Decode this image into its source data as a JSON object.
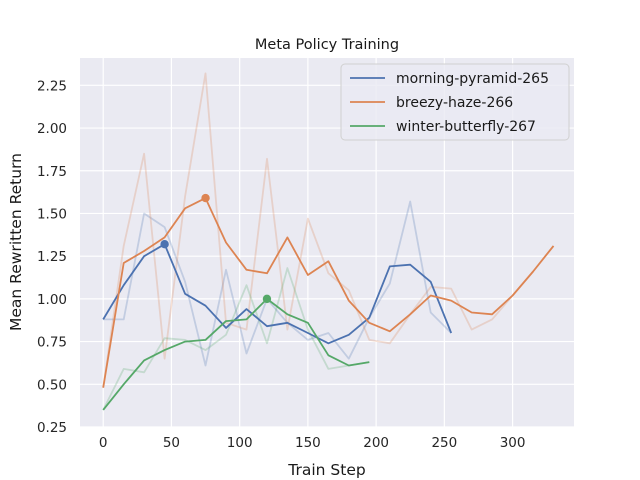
{
  "chart_data": {
    "type": "line",
    "title": "Meta Policy Training",
    "xlabel": "Train Step",
    "ylabel": "Mean Rewritten Return",
    "xlim": [
      -17,
      345
    ],
    "ylim": [
      0.25,
      2.41
    ],
    "xticks": [
      0,
      50,
      100,
      150,
      200,
      250,
      300
    ],
    "yticks": [
      0.25,
      0.5,
      0.75,
      1.0,
      1.25,
      1.5,
      1.75,
      2.0,
      2.25
    ],
    "xtick_labels": [
      "0",
      "50",
      "100",
      "150",
      "200",
      "250",
      "300"
    ],
    "ytick_labels": [
      "0.25",
      "0.50",
      "0.75",
      "1.00",
      "1.25",
      "1.50",
      "1.75",
      "2.00",
      "2.25"
    ],
    "grid": true,
    "legend_position": "top-right",
    "series": [
      {
        "name": "morning-pyramid-265",
        "color": "#4c72b0",
        "raw_x": [
          0,
          15,
          30,
          45,
          60,
          75,
          90,
          105,
          120,
          135,
          150,
          165,
          180,
          195,
          210,
          225,
          240,
          255
        ],
        "raw_y": [
          0.88,
          0.88,
          1.5,
          1.42,
          1.1,
          0.61,
          1.17,
          0.68,
          1.0,
          0.86,
          0.76,
          0.8,
          0.65,
          0.89,
          1.09,
          1.57,
          0.92,
          0.8
        ],
        "smooth_x": [
          0,
          15,
          30,
          45,
          60,
          75,
          90,
          105,
          120,
          135,
          150,
          165,
          180,
          195,
          210,
          225,
          240,
          255
        ],
        "smooth_y": [
          0.88,
          1.08,
          1.25,
          1.32,
          1.03,
          0.96,
          0.83,
          0.94,
          0.84,
          0.86,
          0.8,
          0.74,
          0.79,
          0.89,
          1.19,
          1.2,
          1.1,
          0.8
        ],
        "marker": {
          "x": 45,
          "y": 1.32
        }
      },
      {
        "name": "breezy-haze-266",
        "color": "#dd8452",
        "raw_x": [
          0,
          15,
          30,
          45,
          60,
          75,
          90,
          105,
          120,
          135,
          150,
          165,
          180,
          195,
          210,
          225,
          240,
          255,
          270,
          285,
          300,
          315,
          330
        ],
        "raw_y": [
          0.48,
          1.31,
          1.85,
          0.65,
          1.6,
          2.32,
          0.86,
          0.82,
          1.82,
          0.82,
          1.47,
          1.15,
          1.05,
          0.76,
          0.74,
          0.91,
          1.07,
          1.06,
          0.82,
          0.88,
          1.02,
          1.16,
          1.31
        ],
        "smooth_x": [
          0,
          15,
          30,
          45,
          60,
          75,
          90,
          105,
          120,
          135,
          150,
          165,
          180,
          195,
          210,
          225,
          240,
          255,
          270,
          285,
          300,
          315,
          330
        ],
        "smooth_y": [
          0.48,
          1.21,
          1.28,
          1.36,
          1.53,
          1.59,
          1.33,
          1.17,
          1.15,
          1.36,
          1.14,
          1.22,
          0.99,
          0.86,
          0.81,
          0.91,
          1.02,
          0.99,
          0.92,
          0.91,
          1.02,
          1.16,
          1.31
        ],
        "marker": {
          "x": 75,
          "y": 1.59
        }
      },
      {
        "name": "winter-butterfly-267",
        "color": "#55a868",
        "raw_x": [
          0,
          15,
          30,
          45,
          60,
          75,
          90,
          105,
          120,
          135,
          150,
          165,
          180,
          195
        ],
        "raw_y": [
          0.35,
          0.59,
          0.57,
          0.77,
          0.76,
          0.7,
          0.79,
          1.08,
          0.74,
          1.18,
          0.82,
          0.59,
          0.61,
          0.63
        ],
        "smooth_x": [
          0,
          15,
          30,
          45,
          60,
          75,
          90,
          105,
          120,
          135,
          150,
          165,
          180,
          195
        ],
        "smooth_y": [
          0.35,
          0.5,
          0.64,
          0.7,
          0.75,
          0.76,
          0.87,
          0.88,
          1.0,
          0.91,
          0.86,
          0.67,
          0.61,
          0.63
        ],
        "marker": {
          "x": 120,
          "y": 1.0
        }
      }
    ]
  }
}
